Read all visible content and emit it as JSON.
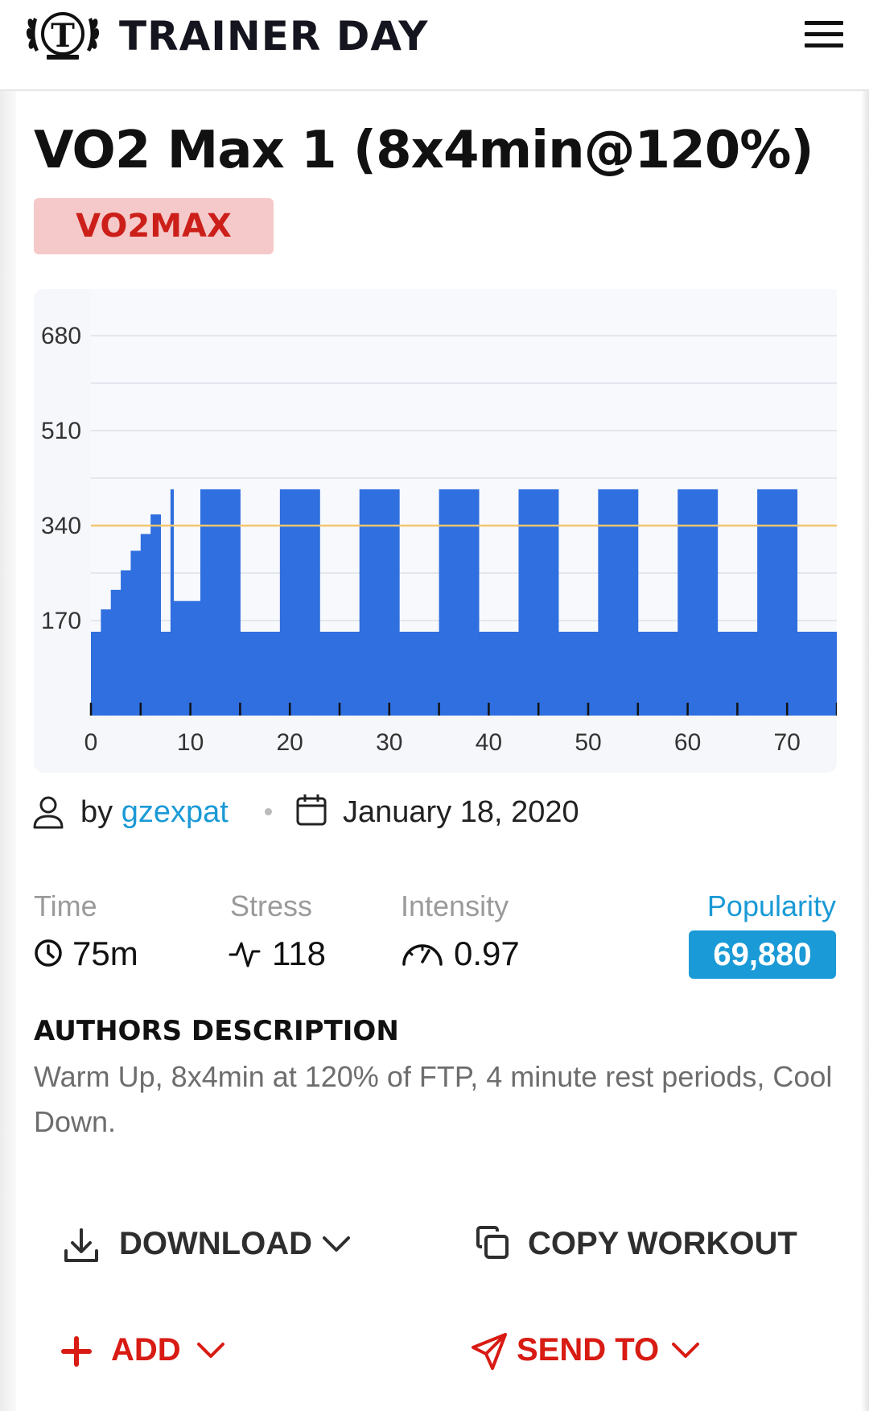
{
  "header": {
    "brand": "TRAINER DAY",
    "logo_letter": "T",
    "logo_icon": "laurel-shield-logo",
    "menu_icon": "hamburger-menu-icon"
  },
  "workout": {
    "title": "VO2 Max 1 (8x4min@120%)",
    "badge": "VO2MAX"
  },
  "chart_data": {
    "type": "area",
    "ylim": [
      0,
      680
    ],
    "xlim": [
      0,
      75
    ],
    "yticks": [
      170,
      340,
      510,
      680
    ],
    "xticks": [
      0,
      10,
      20,
      30,
      40,
      50,
      60,
      70
    ],
    "ftp_line": 340,
    "grid": true,
    "segments": [
      {
        "start": 0,
        "end": 1,
        "power": 150
      },
      {
        "start": 1,
        "end": 2,
        "power": 190
      },
      {
        "start": 2,
        "end": 3,
        "power": 225
      },
      {
        "start": 3,
        "end": 4,
        "power": 260
      },
      {
        "start": 4,
        "end": 5,
        "power": 295
      },
      {
        "start": 5,
        "end": 6,
        "power": 325
      },
      {
        "start": 6,
        "end": 7,
        "power": 360
      },
      {
        "start": 7,
        "end": 8,
        "power": 150
      },
      {
        "start": 8,
        "end": 8.3,
        "power": 405
      },
      {
        "start": 8.3,
        "end": 11,
        "power": 205
      },
      {
        "start": 11,
        "end": 15,
        "power": 405
      },
      {
        "start": 15,
        "end": 19,
        "power": 150
      },
      {
        "start": 19,
        "end": 23,
        "power": 405
      },
      {
        "start": 23,
        "end": 27,
        "power": 150
      },
      {
        "start": 27,
        "end": 31,
        "power": 405
      },
      {
        "start": 31,
        "end": 35,
        "power": 150
      },
      {
        "start": 35,
        "end": 39,
        "power": 405
      },
      {
        "start": 39,
        "end": 43,
        "power": 150
      },
      {
        "start": 43,
        "end": 47,
        "power": 405
      },
      {
        "start": 47,
        "end": 51,
        "power": 150
      },
      {
        "start": 51,
        "end": 55,
        "power": 405
      },
      {
        "start": 55,
        "end": 59,
        "power": 150
      },
      {
        "start": 59,
        "end": 63,
        "power": 405
      },
      {
        "start": 63,
        "end": 67,
        "power": 150
      },
      {
        "start": 67,
        "end": 71,
        "power": 405
      },
      {
        "start": 71,
        "end": 75,
        "power": 150
      }
    ],
    "colors": {
      "bar": "#2f6fdf",
      "ftp": "#f2c66e",
      "grid": "#dcdfe8",
      "bg": "#f6f7fb"
    }
  },
  "meta": {
    "by_prefix": "by",
    "author": "gzexpat",
    "date": "January 18, 2020"
  },
  "stats": {
    "time_label": "Time",
    "time": "75m",
    "stress_label": "Stress",
    "stress": "118",
    "intensity_label": "Intensity",
    "intensity": "0.97",
    "popularity_label": "Popularity",
    "popularity": "69,880"
  },
  "description": {
    "heading": "AUTHORS DESCRIPTION",
    "text": "Warm Up, 8x4min at 120% of FTP, 4 minute rest periods, Cool Down."
  },
  "actions": {
    "download": "DOWNLOAD",
    "copy": "COPY WORKOUT",
    "add": "ADD",
    "send": "SEND TO"
  }
}
